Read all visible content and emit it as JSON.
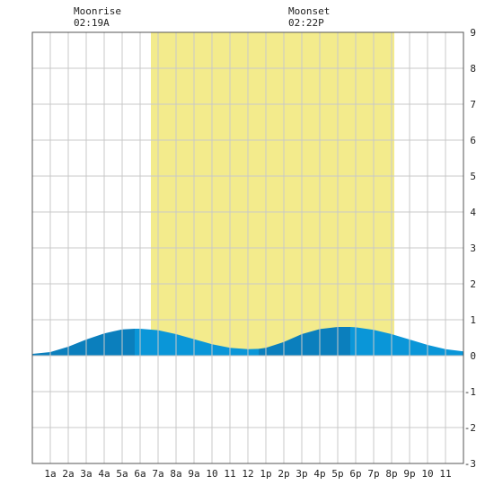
{
  "moon": {
    "rise_label": "Moonrise",
    "rise_time": "02:19A",
    "set_label": "Moonset",
    "set_time": "02:22P"
  },
  "chart_data": {
    "type": "area",
    "ylim": [
      -3,
      9
    ],
    "xlim": [
      0,
      24
    ],
    "yticks": [
      9,
      8,
      7,
      6,
      5,
      4,
      3,
      2,
      1,
      0,
      -1,
      -2,
      -3
    ],
    "x_tick_labels": [
      "1a",
      "2a",
      "3a",
      "4a",
      "5a",
      "6a",
      "7a",
      "8a",
      "9a",
      "10",
      "11",
      "12",
      "1p",
      "2p",
      "3p",
      "4p",
      "5p",
      "6p",
      "7p",
      "8p",
      "9p",
      "10",
      "11"
    ],
    "grid": true,
    "daylight": [
      6.6,
      20.15
    ],
    "tide": {
      "x": [
        0,
        1,
        2,
        3,
        4,
        5,
        5.7,
        6,
        7,
        8,
        9,
        10,
        11,
        12,
        12.6,
        13,
        14,
        15,
        16,
        17,
        17.7,
        18,
        19,
        20,
        21,
        22,
        23,
        24
      ],
      "y": [
        0.05,
        0.1,
        0.25,
        0.45,
        0.62,
        0.73,
        0.75,
        0.75,
        0.71,
        0.6,
        0.46,
        0.32,
        0.22,
        0.18,
        0.19,
        0.22,
        0.38,
        0.6,
        0.74,
        0.8,
        0.8,
        0.79,
        0.72,
        0.6,
        0.45,
        0.3,
        0.18,
        0.12
      ]
    },
    "tide_bands": [
      {
        "from": 0,
        "to": 5.7,
        "color": "#0b7fbd"
      },
      {
        "from": 5.7,
        "to": 12.6,
        "color": "#0a96d8"
      },
      {
        "from": 12.6,
        "to": 17.7,
        "color": "#0b7fbd"
      },
      {
        "from": 17.7,
        "to": 24,
        "color": "#0a96d8"
      }
    ],
    "colors": {
      "daylight": "#f3eb8c",
      "grid": "#c8c8c8",
      "frame": "#555555"
    }
  }
}
